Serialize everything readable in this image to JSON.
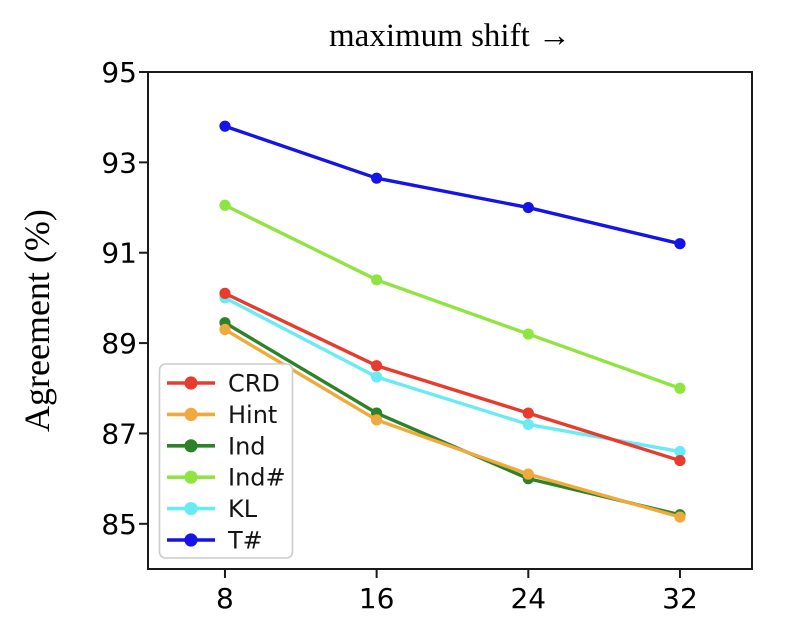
{
  "chart_data": {
    "type": "line",
    "title": "maximum shift →",
    "xlabel": "",
    "ylabel": "Agreement (%)",
    "x": [
      8,
      16,
      24,
      32
    ],
    "xticks": [
      "8",
      "16",
      "24",
      "32"
    ],
    "yticks": [
      "85",
      "87",
      "89",
      "91",
      "93",
      "95"
    ],
    "ytick_values": [
      85,
      87,
      89,
      91,
      93,
      95
    ],
    "xlim": [
      3.94,
      35.8
    ],
    "ylim": [
      84.0,
      95.0
    ],
    "grid": false,
    "legend_position": "lower-left",
    "series": [
      {
        "name": "CRD",
        "color": "#e83b2d",
        "values": [
          90.1,
          88.5,
          87.45,
          86.4
        ]
      },
      {
        "name": "Hint",
        "color": "#f0a93c",
        "values": [
          89.3,
          87.3,
          86.1,
          85.15
        ]
      },
      {
        "name": "Ind",
        "color": "#2d8228",
        "values": [
          89.45,
          87.45,
          86.0,
          85.2
        ]
      },
      {
        "name": "Ind#",
        "color": "#90e442",
        "values": [
          92.05,
          90.4,
          89.2,
          88.0
        ]
      },
      {
        "name": "KL",
        "color": "#69ebf5",
        "values": [
          90.0,
          88.25,
          87.2,
          86.6
        ]
      },
      {
        "name": "T#",
        "color": "#1414e8",
        "values": [
          93.8,
          92.65,
          92.0,
          91.2
        ]
      }
    ],
    "draw_order": [
      "Ind",
      "Hint",
      "KL",
      "CRD",
      "Ind#",
      "T#"
    ],
    "axis_color": "#1a1a1a"
  }
}
